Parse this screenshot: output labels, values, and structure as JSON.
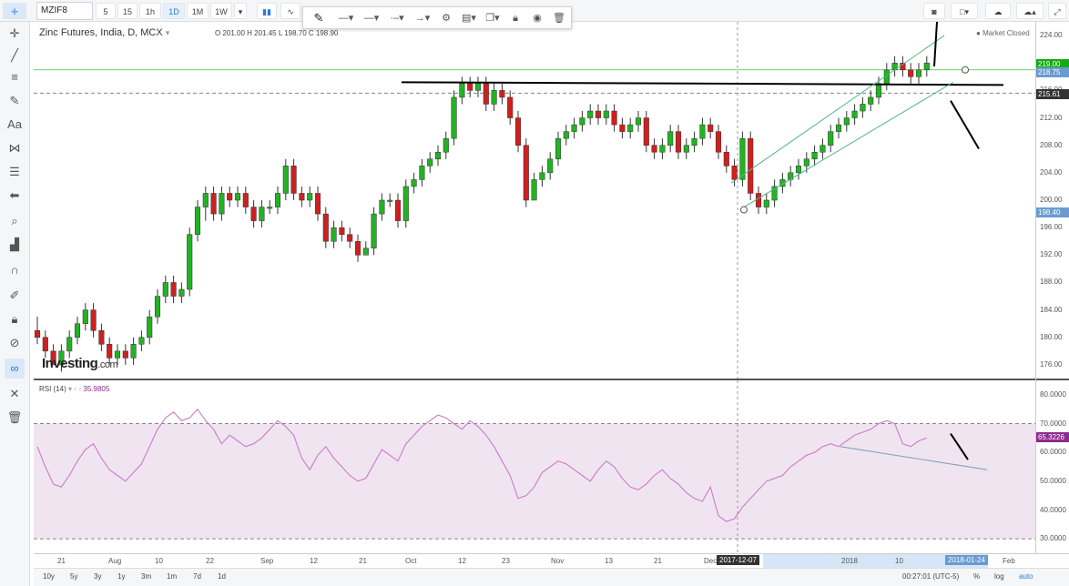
{
  "toolbar": {
    "symbol": "MZIF8",
    "intervals": [
      "5",
      "15",
      "1h",
      "1D",
      "1M",
      "1W"
    ],
    "active_interval": "1D"
  },
  "drawing_toolbar": {
    "tools": [
      "pencil-icon",
      "line-style-solid-icon",
      "line-style-medium-icon",
      "line-style-dash-dot-icon",
      "line-style-arrow-icon",
      "gear-icon",
      "stack-icon",
      "copy-icon",
      "lock-icon",
      "eye-icon",
      "trash-icon"
    ]
  },
  "left_tools": [
    "crosshair-icon",
    "trend-line-icon",
    "horizontal-lines-icon",
    "brush-icon",
    "text-icon",
    "pattern-icon",
    "fib-icon",
    "back-arrow-icon",
    "zoom-icon",
    "measure-icon",
    "magnet-icon",
    "pencil-lock-icon",
    "lock-icon",
    "eye-off-icon",
    "link-icon",
    "ruler-cross-icon",
    "trash-icon"
  ],
  "chart": {
    "title": "Zinc Futures, India, D, MCX",
    "ohlc": "O 201.00  H 201.45  L 198.70  C 198.90",
    "market_status": "Market Closed",
    "logo_main": "Investing",
    "logo_suffix": ".com",
    "y_labels": [
      "224.00",
      "220.00",
      "216.00",
      "212.00",
      "208.00",
      "204.00",
      "200.00",
      "196.00",
      "192.00",
      "188.00",
      "184.00",
      "180.00",
      "176.00"
    ],
    "price_tags": [
      {
        "label": "219.00",
        "color": "#15a915"
      },
      {
        "label": "218.75",
        "color": "#6a9bd0"
      },
      {
        "label": "215.61",
        "color": "#333333"
      },
      {
        "label": "198.40",
        "color": "#6a9bd0"
      }
    ]
  },
  "rsi": {
    "label": "RSI (14)",
    "value": "35.9805",
    "y_labels": [
      "80.0000",
      "70.0000",
      "60.0000",
      "50.0000",
      "40.0000",
      "30.0000"
    ],
    "current_tag": "65.3226"
  },
  "x_axis": {
    "labels": [
      "21",
      "Aug",
      "10",
      "22",
      "Sep",
      "12",
      "21",
      "Oct",
      "12",
      "23",
      "Nov",
      "13",
      "21",
      "Dec",
      "2018",
      "10",
      "Feb"
    ],
    "crosshair_date": "2017-12-07",
    "end_date": "2018-01-24"
  },
  "bottom_bar": {
    "ranges": [
      "10y",
      "5y",
      "3y",
      "1y",
      "3m",
      "1m",
      "7d",
      "1d"
    ],
    "time": "00:27:01 (UTC-5)",
    "percent_label": "%",
    "log_label": "log",
    "auto_label": "auto"
  },
  "chart_data": {
    "type": "candlestick",
    "title": "Zinc Futures, India, D, MCX",
    "ylim": [
      174,
      226
    ],
    "candles": [
      [
        181,
        180,
        183,
        179
      ],
      [
        180,
        178,
        181,
        177
      ],
      [
        178,
        176,
        179,
        176
      ],
      [
        176,
        178,
        179,
        175
      ],
      [
        178,
        180,
        181,
        177
      ],
      [
        180,
        182,
        183,
        179
      ],
      [
        182,
        184,
        185,
        181
      ],
      [
        184,
        181,
        185,
        180
      ],
      [
        181,
        179,
        182,
        178
      ],
      [
        179,
        177,
        180,
        176
      ],
      [
        177,
        178,
        179,
        176
      ],
      [
        178,
        177,
        179,
        176
      ],
      [
        177,
        179,
        180,
        176
      ],
      [
        179,
        180,
        181,
        178
      ],
      [
        180,
        183,
        184,
        179
      ],
      [
        183,
        186,
        187,
        182
      ],
      [
        186,
        188,
        189,
        185
      ],
      [
        188,
        186,
        189,
        185
      ],
      [
        186,
        187,
        188,
        185
      ],
      [
        187,
        195,
        196,
        186
      ],
      [
        195,
        199,
        200,
        194
      ],
      [
        199,
        201,
        202,
        197
      ],
      [
        201,
        198,
        202,
        197
      ],
      [
        198,
        201,
        202,
        197
      ],
      [
        201,
        200,
        202,
        199
      ],
      [
        200,
        201,
        202,
        199
      ],
      [
        201,
        199,
        202,
        198
      ],
      [
        199,
        197,
        200,
        196
      ],
      [
        197,
        199,
        200,
        196
      ],
      [
        199,
        199,
        200,
        198
      ],
      [
        199,
        201,
        202,
        198
      ],
      [
        201,
        205,
        206,
        200
      ],
      [
        205,
        201,
        206,
        200
      ],
      [
        201,
        200,
        202,
        199
      ],
      [
        200,
        201,
        202,
        199
      ],
      [
        201,
        198,
        202,
        197
      ],
      [
        198,
        194,
        199,
        193
      ],
      [
        194,
        196,
        197,
        193
      ],
      [
        196,
        195,
        197,
        194
      ],
      [
        195,
        194,
        196,
        193
      ],
      [
        194,
        192,
        195,
        191
      ],
      [
        192,
        193,
        194,
        192
      ],
      [
        193,
        198,
        199,
        192
      ],
      [
        198,
        200,
        201,
        197
      ],
      [
        200,
        200,
        201,
        199
      ],
      [
        200,
        197,
        201,
        196
      ],
      [
        197,
        202,
        203,
        196
      ],
      [
        202,
        203,
        204,
        201
      ],
      [
        203,
        205,
        206,
        202
      ],
      [
        205,
        206,
        207,
        204
      ],
      [
        206,
        207,
        208,
        205
      ],
      [
        207,
        209,
        210,
        206
      ],
      [
        209,
        215,
        216,
        208
      ],
      [
        215,
        217,
        218,
        214
      ],
      [
        217,
        216,
        218,
        215
      ],
      [
        216,
        217,
        218,
        215
      ],
      [
        217,
        214,
        218,
        213
      ],
      [
        214,
        216,
        217,
        213
      ],
      [
        216,
        215,
        217,
        214
      ],
      [
        215,
        212,
        216,
        211
      ],
      [
        212,
        208,
        213,
        207
      ],
      [
        208,
        200,
        209,
        199
      ],
      [
        200,
        203,
        204,
        200
      ],
      [
        203,
        204,
        205,
        202
      ],
      [
        204,
        206,
        207,
        203
      ],
      [
        206,
        209,
        210,
        205
      ],
      [
        209,
        210,
        211,
        208
      ],
      [
        210,
        211,
        212,
        209
      ],
      [
        211,
        212,
        213,
        210
      ],
      [
        212,
        213,
        214,
        211
      ],
      [
        213,
        212,
        214,
        211
      ],
      [
        212,
        213,
        214,
        211
      ],
      [
        213,
        211,
        214,
        210
      ],
      [
        211,
        210,
        212,
        209
      ],
      [
        210,
        211,
        212,
        209
      ],
      [
        211,
        212,
        213,
        210
      ],
      [
        212,
        208,
        213,
        207
      ],
      [
        208,
        207,
        209,
        206
      ],
      [
        207,
        208,
        209,
        206
      ],
      [
        208,
        210,
        211,
        207
      ],
      [
        210,
        207,
        211,
        206
      ],
      [
        207,
        208,
        209,
        206
      ],
      [
        208,
        209,
        210,
        207
      ],
      [
        209,
        211,
        212,
        208
      ],
      [
        211,
        210,
        212,
        209
      ],
      [
        210,
        207,
        211,
        206
      ],
      [
        207,
        205,
        208,
        204
      ],
      [
        205,
        203,
        206,
        202
      ],
      [
        203,
        209,
        210,
        202
      ],
      [
        209,
        201,
        210,
        200
      ],
      [
        201,
        199,
        202,
        198
      ],
      [
        199,
        200,
        201,
        198
      ],
      [
        200,
        202,
        203,
        199
      ],
      [
        202,
        203,
        204,
        201
      ],
      [
        203,
        204,
        205,
        202
      ],
      [
        204,
        205,
        206,
        203
      ],
      [
        205,
        206,
        207,
        204
      ],
      [
        206,
        207,
        208,
        205
      ],
      [
        207,
        208,
        209,
        206
      ],
      [
        208,
        210,
        211,
        207
      ],
      [
        210,
        211,
        212,
        209
      ],
      [
        211,
        212,
        213,
        210
      ],
      [
        212,
        213,
        214,
        211
      ],
      [
        213,
        214,
        215,
        212
      ],
      [
        214,
        215,
        216,
        213
      ],
      [
        215,
        217,
        218,
        214
      ],
      [
        217,
        219,
        220,
        216
      ],
      [
        219,
        220,
        221,
        218
      ],
      [
        220,
        219,
        221,
        218
      ],
      [
        219,
        218,
        220,
        217
      ],
      [
        218,
        219,
        220,
        217
      ],
      [
        219,
        220,
        221,
        218
      ]
    ],
    "rsi_values": [
      62,
      55,
      49,
      48,
      52,
      57,
      61,
      63,
      58,
      54,
      52,
      50,
      53,
      56,
      62,
      68,
      72,
      74,
      71,
      72,
      75,
      71,
      68,
      63,
      66,
      64,
      62,
      63,
      65,
      68,
      71,
      69,
      66,
      58,
      54,
      59,
      62,
      58,
      55,
      52,
      50,
      51,
      56,
      61,
      59,
      57,
      63,
      66,
      69,
      71,
      73,
      72,
      70,
      68,
      71,
      69,
      66,
      62,
      57,
      52,
      44,
      45,
      48,
      53,
      55,
      57,
      56,
      54,
      52,
      50,
      54,
      57,
      55,
      51,
      48,
      47,
      49,
      52,
      54,
      51,
      49,
      46,
      44,
      43,
      48,
      38,
      36,
      37,
      41,
      44,
      47,
      50,
      51,
      52,
      55,
      57,
      59,
      60,
      62,
      63,
      62,
      64,
      66,
      67,
      68,
      70,
      71,
      70,
      63,
      62,
      64,
      65
    ]
  }
}
